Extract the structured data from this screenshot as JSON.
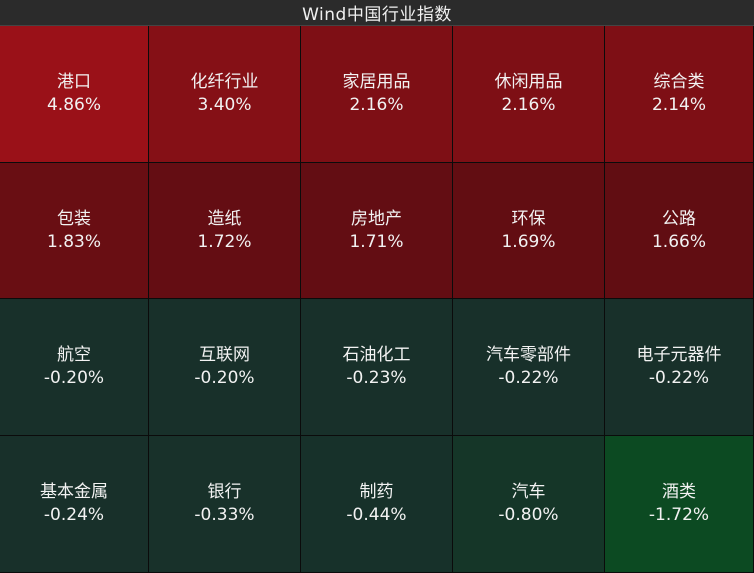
{
  "title": "Wind中国行业指数",
  "colors": {
    "up_strong": "#9a1118",
    "up_mid": "#7a0f15",
    "up_weak": "#5e0d12",
    "down_weak": "#18302a",
    "down_strong": "#0c4a22"
  },
  "chart_data": {
    "type": "heatmap",
    "title": "Wind中国行业指数",
    "grid": {
      "rows": 4,
      "cols": 5
    },
    "unit": "%",
    "cells": [
      {
        "name": "港口",
        "value": 4.86,
        "label": "4.86%"
      },
      {
        "name": "化纤行业",
        "value": 3.4,
        "label": "3.40%"
      },
      {
        "name": "家居用品",
        "value": 2.16,
        "label": "2.16%"
      },
      {
        "name": "休闲用品",
        "value": 2.16,
        "label": "2.16%"
      },
      {
        "name": "综合类",
        "value": 2.14,
        "label": "2.14%"
      },
      {
        "name": "包装",
        "value": 1.83,
        "label": "1.83%"
      },
      {
        "name": "造纸",
        "value": 1.72,
        "label": "1.72%"
      },
      {
        "name": "房地产",
        "value": 1.71,
        "label": "1.71%"
      },
      {
        "name": "环保",
        "value": 1.69,
        "label": "1.69%"
      },
      {
        "name": "公路",
        "value": 1.66,
        "label": "1.66%"
      },
      {
        "name": "航空",
        "value": -0.2,
        "label": "-0.20%"
      },
      {
        "name": "互联网",
        "value": -0.2,
        "label": "-0.20%"
      },
      {
        "name": "石油化工",
        "value": -0.23,
        "label": "-0.23%"
      },
      {
        "name": "汽车零部件",
        "value": -0.22,
        "label": "-0.22%"
      },
      {
        "name": "电子元器件",
        "value": -0.22,
        "label": "-0.22%"
      },
      {
        "name": "基本金属",
        "value": -0.24,
        "label": "-0.24%"
      },
      {
        "name": "银行",
        "value": -0.33,
        "label": "-0.33%"
      },
      {
        "name": "制药",
        "value": -0.44,
        "label": "-0.44%"
      },
      {
        "name": "汽车",
        "value": -0.8,
        "label": "-0.80%"
      },
      {
        "name": "酒类",
        "value": -1.72,
        "label": "-1.72%"
      }
    ]
  }
}
